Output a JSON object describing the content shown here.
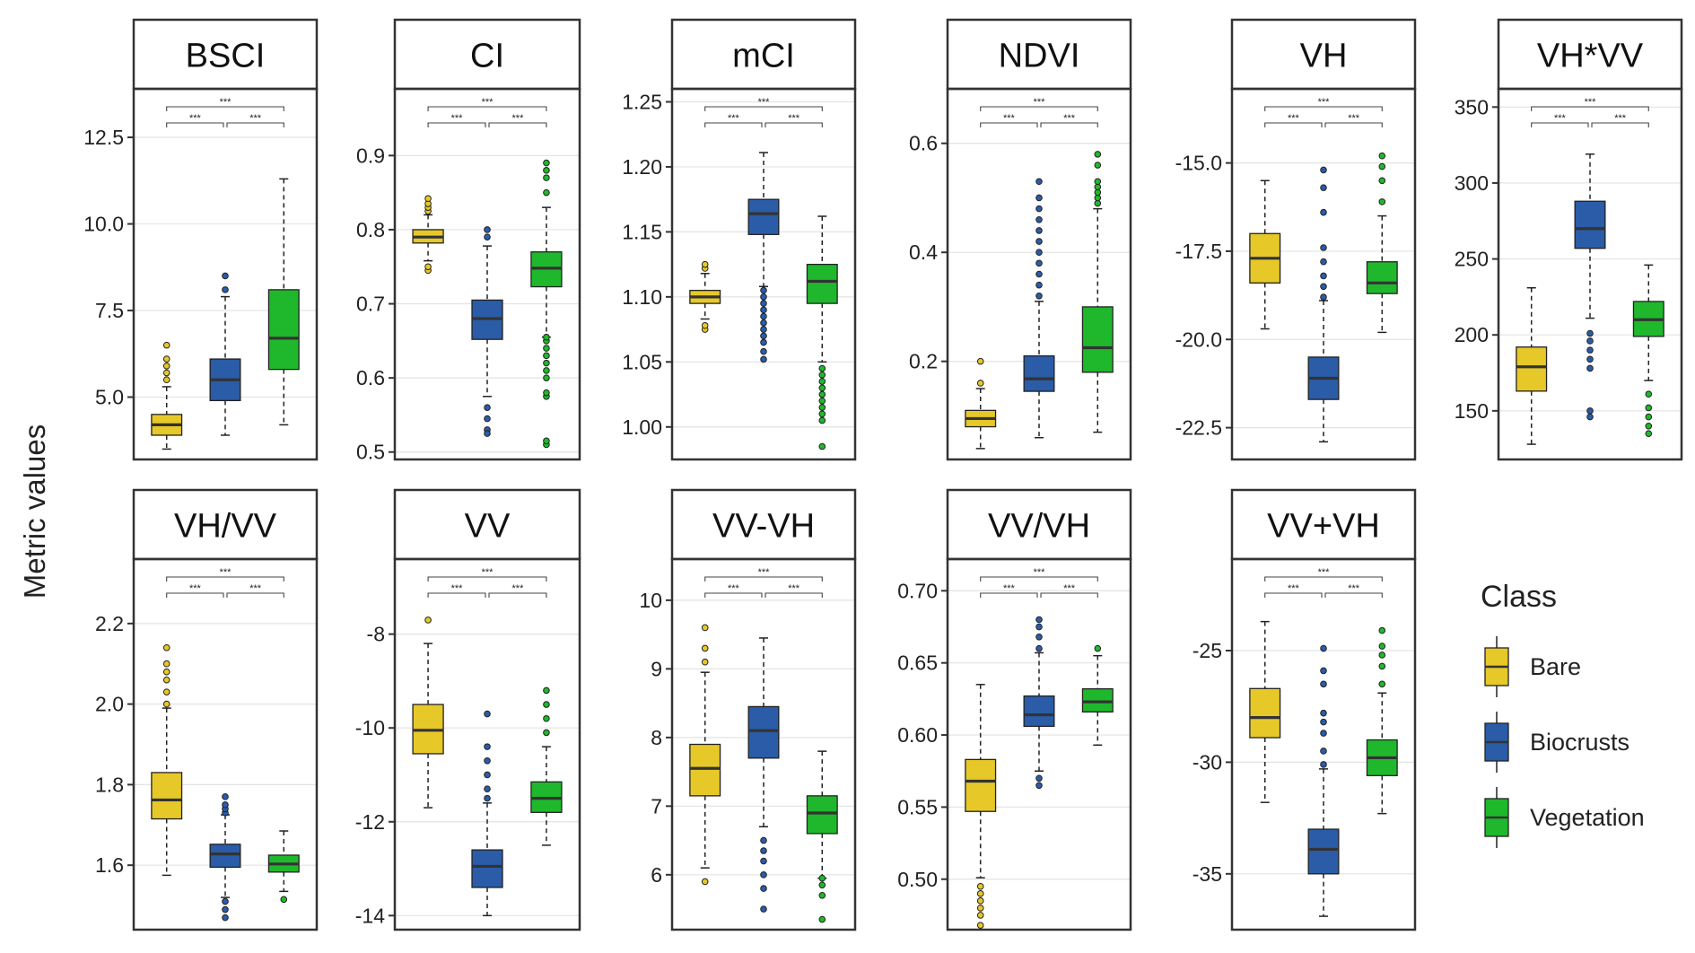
{
  "ylabel": "Metric values",
  "legend": {
    "title": "Class",
    "items": [
      {
        "label": "Bare",
        "color": "#E6C829"
      },
      {
        "label": "Biocrusts",
        "color": "#2A5CA8"
      },
      {
        "label": "Vegetation",
        "color": "#1FB82C"
      }
    ]
  },
  "sig_label": "***",
  "chart_data": [
    {
      "type": "box",
      "title": "BSCI",
      "ylim": [
        3.2,
        13.9
      ],
      "ticks": [
        5.0,
        7.5,
        10.0,
        12.5
      ],
      "tick_labels": [
        "5.0",
        "7.5",
        "10.0",
        "12.5"
      ],
      "boxes": [
        {
          "class": "Bare",
          "whisker_low": 3.5,
          "q1": 3.9,
          "median": 4.2,
          "q3": 4.5,
          "whisker_high": 5.3,
          "outliers": [
            5.5,
            5.7,
            5.9,
            6.1,
            6.5
          ]
        },
        {
          "class": "Biocrusts",
          "whisker_low": 3.9,
          "q1": 4.9,
          "median": 5.5,
          "q3": 6.1,
          "whisker_high": 7.9,
          "outliers": [
            8.1,
            8.5
          ]
        },
        {
          "class": "Vegetation",
          "whisker_low": 4.2,
          "q1": 5.8,
          "median": 6.7,
          "q3": 8.1,
          "whisker_high": 11.3,
          "outliers": []
        }
      ]
    },
    {
      "type": "box",
      "title": "CI",
      "ylim": [
        0.49,
        0.99
      ],
      "ticks": [
        0.5,
        0.6,
        0.7,
        0.8,
        0.9
      ],
      "tick_labels": [
        "0.5",
        "0.6",
        "0.7",
        "0.8",
        "0.9"
      ],
      "boxes": [
        {
          "class": "Bare",
          "whisker_low": 0.758,
          "q1": 0.782,
          "median": 0.79,
          "q3": 0.8,
          "whisker_high": 0.82,
          "outliers": [
            0.745,
            0.75,
            0.825,
            0.83,
            0.835,
            0.842
          ]
        },
        {
          "class": "Biocrusts",
          "whisker_low": 0.575,
          "q1": 0.652,
          "median": 0.68,
          "q3": 0.705,
          "whisker_high": 0.778,
          "outliers": [
            0.56,
            0.545,
            0.53,
            0.525,
            0.79,
            0.8
          ]
        },
        {
          "class": "Vegetation",
          "whisker_low": 0.655,
          "q1": 0.723,
          "median": 0.748,
          "q3": 0.77,
          "whisker_high": 0.83,
          "outliers": [
            0.51,
            0.515,
            0.575,
            0.58,
            0.6,
            0.61,
            0.62,
            0.63,
            0.64,
            0.65,
            0.655,
            0.85,
            0.87,
            0.88,
            0.89
          ]
        }
      ]
    },
    {
      "type": "box",
      "title": "mCI",
      "ylim": [
        0.975,
        1.26
      ],
      "ticks": [
        1.0,
        1.05,
        1.1,
        1.15,
        1.2,
        1.25
      ],
      "tick_labels": [
        "1.00",
        "1.05",
        "1.10",
        "1.15",
        "1.20",
        "1.25"
      ],
      "boxes": [
        {
          "class": "Bare",
          "whisker_low": 1.083,
          "q1": 1.095,
          "median": 1.1,
          "q3": 1.105,
          "whisker_high": 1.118,
          "outliers": [
            1.075,
            1.078,
            1.122,
            1.125
          ]
        },
        {
          "class": "Biocrusts",
          "whisker_low": 1.108,
          "q1": 1.148,
          "median": 1.164,
          "q3": 1.175,
          "whisker_high": 1.211,
          "outliers": [
            1.052,
            1.058,
            1.065,
            1.07,
            1.075,
            1.08,
            1.085,
            1.09,
            1.095,
            1.1,
            1.105
          ]
        },
        {
          "class": "Vegetation",
          "whisker_low": 1.05,
          "q1": 1.095,
          "median": 1.112,
          "q3": 1.125,
          "whisker_high": 1.162,
          "outliers": [
            0.985,
            1.005,
            1.01,
            1.015,
            1.02,
            1.025,
            1.03,
            1.035,
            1.04,
            1.045
          ]
        }
      ]
    },
    {
      "type": "box",
      "title": "NDVI",
      "ylim": [
        0.02,
        0.7
      ],
      "ticks": [
        0.2,
        0.4,
        0.6
      ],
      "tick_labels": [
        "0.2",
        "0.4",
        "0.6"
      ],
      "boxes": [
        {
          "class": "Bare",
          "whisker_low": 0.04,
          "q1": 0.08,
          "median": 0.095,
          "q3": 0.11,
          "whisker_high": 0.15,
          "outliers": [
            0.16,
            0.2
          ]
        },
        {
          "class": "Biocrusts",
          "whisker_low": 0.06,
          "q1": 0.145,
          "median": 0.168,
          "q3": 0.21,
          "whisker_high": 0.31,
          "outliers": [
            0.32,
            0.34,
            0.36,
            0.38,
            0.4,
            0.42,
            0.44,
            0.46,
            0.48,
            0.5,
            0.53
          ]
        },
        {
          "class": "Vegetation",
          "whisker_low": 0.07,
          "q1": 0.18,
          "median": 0.225,
          "q3": 0.3,
          "whisker_high": 0.48,
          "outliers": [
            0.49,
            0.5,
            0.51,
            0.52,
            0.53,
            0.56,
            0.58
          ]
        }
      ]
    },
    {
      "type": "box",
      "title": "VH",
      "ylim": [
        -23.4,
        -12.9
      ],
      "ticks": [
        -22.5,
        -20.0,
        -17.5,
        -15.0
      ],
      "tick_labels": [
        "-22.5",
        "-20.0",
        "-17.5",
        "-15.0"
      ],
      "boxes": [
        {
          "class": "Bare",
          "whisker_low": -19.7,
          "q1": -18.4,
          "median": -17.7,
          "q3": -17.0,
          "whisker_high": -15.5,
          "outliers": []
        },
        {
          "class": "Biocrusts",
          "whisker_low": -22.9,
          "q1": -21.7,
          "median": -21.1,
          "q3": -20.5,
          "whisker_high": -18.9,
          "outliers": [
            -18.8,
            -18.5,
            -18.2,
            -17.8,
            -17.4,
            -16.4,
            -15.7,
            -15.2
          ]
        },
        {
          "class": "Vegetation",
          "whisker_low": -19.8,
          "q1": -18.7,
          "median": -18.4,
          "q3": -17.8,
          "whisker_high": -16.5,
          "outliers": [
            -16.1,
            -15.5,
            -15.1,
            -14.8
          ]
        }
      ]
    },
    {
      "type": "box",
      "title": "VH*VV",
      "ylim": [
        118,
        362
      ],
      "ticks": [
        150,
        200,
        250,
        300,
        350
      ],
      "tick_labels": [
        "150",
        "200",
        "250",
        "300",
        "350"
      ],
      "boxes": [
        {
          "class": "Bare",
          "whisker_low": 128,
          "q1": 163,
          "median": 179,
          "q3": 192,
          "whisker_high": 231,
          "outliers": []
        },
        {
          "class": "Biocrusts",
          "whisker_low": 211,
          "q1": 257,
          "median": 270,
          "q3": 288,
          "whisker_high": 319,
          "outliers": [
            146,
            150,
            178,
            184,
            190,
            196,
            201
          ]
        },
        {
          "class": "Vegetation",
          "whisker_low": 170,
          "q1": 199,
          "median": 210,
          "q3": 222,
          "whisker_high": 246,
          "outliers": [
            135,
            140,
            146,
            152,
            161
          ]
        }
      ]
    },
    {
      "type": "box",
      "title": "VH/VV",
      "ylim": [
        1.44,
        2.36
      ],
      "ticks": [
        1.6,
        1.8,
        2.0,
        2.2
      ],
      "tick_labels": [
        "1.6",
        "1.8",
        "2.0",
        "2.2"
      ],
      "boxes": [
        {
          "class": "Bare",
          "whisker_low": 1.575,
          "q1": 1.715,
          "median": 1.762,
          "q3": 1.83,
          "whisker_high": 1.99,
          "outliers": [
            2.0,
            2.03,
            2.06,
            2.08,
            2.1,
            2.14
          ]
        },
        {
          "class": "Biocrusts",
          "whisker_low": 1.52,
          "q1": 1.595,
          "median": 1.628,
          "q3": 1.652,
          "whisker_high": 1.725,
          "outliers": [
            1.47,
            1.49,
            1.51,
            1.73,
            1.74,
            1.75,
            1.77
          ]
        },
        {
          "class": "Vegetation",
          "whisker_low": 1.535,
          "q1": 1.583,
          "median": 1.603,
          "q3": 1.625,
          "whisker_high": 1.685,
          "outliers": [
            1.515
          ]
        }
      ]
    },
    {
      "type": "box",
      "title": "VV",
      "ylim": [
        -14.3,
        -6.4
      ],
      "ticks": [
        -14,
        -12,
        -10,
        -8
      ],
      "tick_labels": [
        "-14",
        "-12",
        "-10",
        "-8"
      ],
      "boxes": [
        {
          "class": "Bare",
          "whisker_low": -11.7,
          "q1": -10.55,
          "median": -10.05,
          "q3": -9.5,
          "whisker_high": -8.2,
          "outliers": [
            -7.7
          ]
        },
        {
          "class": "Biocrusts",
          "whisker_low": -14.0,
          "q1": -13.4,
          "median": -12.95,
          "q3": -12.6,
          "whisker_high": -11.6,
          "outliers": [
            -11.5,
            -11.3,
            -11.0,
            -10.7,
            -10.4,
            -9.7
          ]
        },
        {
          "class": "Vegetation",
          "whisker_low": -12.5,
          "q1": -11.8,
          "median": -11.5,
          "q3": -11.15,
          "whisker_high": -10.4,
          "outliers": [
            -10.1,
            -9.8,
            -9.5,
            -9.2
          ]
        }
      ]
    },
    {
      "type": "box",
      "title": "VV-VH",
      "ylim": [
        5.2,
        10.6
      ],
      "ticks": [
        6,
        7,
        8,
        9,
        10
      ],
      "tick_labels": [
        "6",
        "7",
        "8",
        "9",
        "10"
      ],
      "boxes": [
        {
          "class": "Bare",
          "whisker_low": 6.1,
          "q1": 7.15,
          "median": 7.55,
          "q3": 7.9,
          "whisker_high": 8.95,
          "outliers": [
            5.9,
            9.1,
            9.3,
            9.6
          ]
        },
        {
          "class": "Biocrusts",
          "whisker_low": 6.7,
          "q1": 7.7,
          "median": 8.1,
          "q3": 8.45,
          "whisker_high": 9.45,
          "outliers": [
            5.5,
            5.8,
            6.0,
            6.2,
            6.35,
            6.5
          ]
        },
        {
          "class": "Vegetation",
          "whisker_low": 5.95,
          "q1": 6.6,
          "median": 6.9,
          "q3": 7.15,
          "whisker_high": 7.8,
          "outliers": [
            5.35,
            5.7,
            5.85,
            5.95
          ]
        }
      ]
    },
    {
      "type": "box",
      "title": "VV/VH",
      "ylim": [
        0.465,
        0.722
      ],
      "ticks": [
        0.5,
        0.55,
        0.6,
        0.65,
        0.7
      ],
      "tick_labels": [
        "0.50",
        "0.55",
        "0.60",
        "0.65",
        "0.70"
      ],
      "boxes": [
        {
          "class": "Bare",
          "whisker_low": 0.501,
          "q1": 0.547,
          "median": 0.568,
          "q3": 0.583,
          "whisker_high": 0.635,
          "outliers": [
            0.468,
            0.475,
            0.48,
            0.485,
            0.49,
            0.495
          ]
        },
        {
          "class": "Biocrusts",
          "whisker_low": 0.575,
          "q1": 0.606,
          "median": 0.614,
          "q3": 0.627,
          "whisker_high": 0.657,
          "outliers": [
            0.565,
            0.57,
            0.66,
            0.668,
            0.675,
            0.68
          ]
        },
        {
          "class": "Vegetation",
          "whisker_low": 0.593,
          "q1": 0.616,
          "median": 0.623,
          "q3": 0.632,
          "whisker_high": 0.655,
          "outliers": [
            0.66
          ]
        }
      ]
    },
    {
      "type": "box",
      "title": "VV+VH",
      "ylim": [
        -37.5,
        -20.9
      ],
      "ticks": [
        -35,
        -30,
        -25
      ],
      "tick_labels": [
        "-35",
        "-30",
        "-25"
      ],
      "boxes": [
        {
          "class": "Bare",
          "whisker_low": -31.8,
          "q1": -28.9,
          "median": -28.0,
          "q3": -26.7,
          "whisker_high": -23.7,
          "outliers": []
        },
        {
          "class": "Biocrusts",
          "whisker_low": -36.9,
          "q1": -35.0,
          "median": -33.9,
          "q3": -33.0,
          "whisker_high": -30.3,
          "outliers": [
            -30.1,
            -29.5,
            -28.7,
            -28.2,
            -27.8,
            -26.5,
            -25.9,
            -24.9
          ]
        },
        {
          "class": "Vegetation",
          "whisker_low": -32.3,
          "q1": -30.6,
          "median": -29.8,
          "q3": -29.0,
          "whisker_high": -26.9,
          "outliers": [
            -26.5,
            -25.7,
            -25.2,
            -24.8,
            -24.1
          ]
        }
      ]
    }
  ]
}
